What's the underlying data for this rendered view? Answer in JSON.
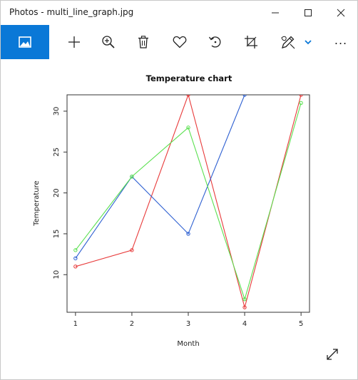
{
  "window": {
    "title": "Photos - multi_line_graph.jpg"
  },
  "toolbar": {
    "items": [
      "image-icon",
      "add-icon",
      "zoom-in-icon",
      "delete-icon",
      "favorite-icon",
      "rotate-icon",
      "crop-icon",
      "edit-icon",
      "chevron-down-icon",
      "more-icon"
    ],
    "more_label": "...",
    "accent_color": "#0a78d7"
  },
  "chart_data": {
    "type": "line",
    "title": "Temperature chart",
    "xlabel": "Month",
    "ylabel": "Temperature",
    "x": [
      1,
      2,
      3,
      4,
      5
    ],
    "xticks": [
      "1",
      "2",
      "3",
      "4",
      "5"
    ],
    "yticks": [
      "10",
      "15",
      "20",
      "25",
      "30"
    ],
    "xlim": [
      0.85,
      5.15
    ],
    "ylim": [
      5.4,
      32.0
    ],
    "grid": false,
    "series": [
      {
        "color": "#e83a3a",
        "values": [
          11,
          13,
          32,
          6,
          32
        ]
      },
      {
        "color": "#2d5fd1",
        "values": [
          12,
          22,
          15,
          32,
          null
        ]
      },
      {
        "color": "#5be050",
        "values": [
          13,
          22,
          28,
          7,
          31
        ]
      }
    ]
  }
}
